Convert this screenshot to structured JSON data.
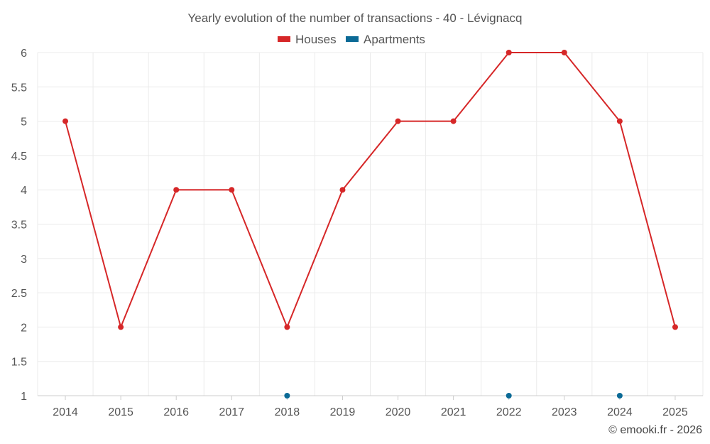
{
  "chart_data": {
    "type": "line",
    "title": "Yearly evolution of the number of transactions - 40 - Lévignacq",
    "categories": [
      "2014",
      "2015",
      "2016",
      "2017",
      "2018",
      "2019",
      "2020",
      "2021",
      "2022",
      "2023",
      "2024",
      "2025"
    ],
    "series": [
      {
        "name": "Houses",
        "color": "#d62728",
        "values": [
          5,
          2,
          4,
          4,
          2,
          4,
          5,
          5,
          6,
          6,
          5,
          2
        ]
      },
      {
        "name": "Apartments",
        "color": "#0b6a96",
        "values": [
          null,
          null,
          null,
          null,
          1,
          null,
          null,
          null,
          1,
          null,
          1,
          null
        ]
      }
    ],
    "ylim": [
      1,
      6
    ],
    "yticks": [
      "1",
      "1.5",
      "2",
      "2.5",
      "3",
      "3.5",
      "4",
      "4.5",
      "5",
      "5.5",
      "6"
    ],
    "grid": true,
    "legend_position": "top-center"
  },
  "credit": "© emooki.fr - 2026"
}
